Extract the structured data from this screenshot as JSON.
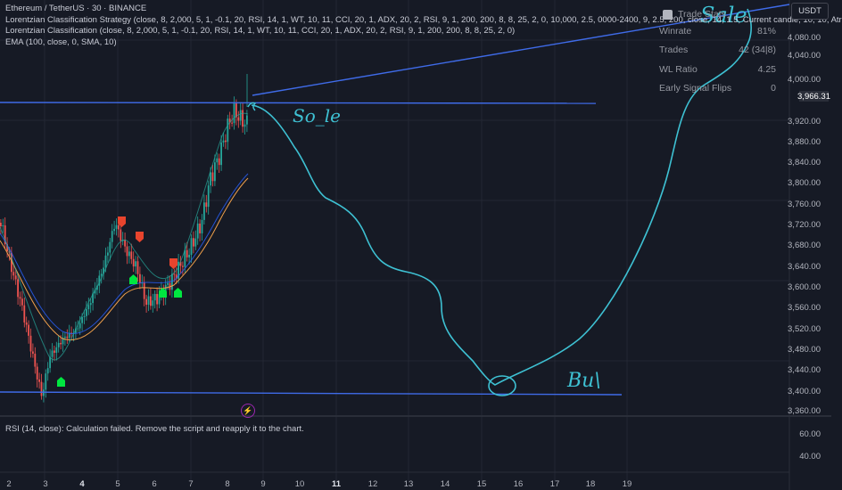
{
  "legend": {
    "line1": "Ethereum / TetherUS · 30 · BINANCE",
    "line2": "Lorentzian Classification Strategy (close, 8, 2,000, 5, 1, -0.1, 20, RSI, 14, 1, WT, 10, 11, CCI, 20, 1, ADX, 20, 2, RSI, 9, 1, 200, 200, 8, 8, 25, 2, 0, 10,000, 2.5, 0000-2400, 9, 2.5, 200, close, 14, 1.5, Current candle, 10, 10, Atr",
    "line3": "Lorentzian Classification (close, 8, 2,000, 5, 1, -0.1, 20, RSI, 14, 1, WT, 10, 11, CCI, 20, 1, ADX, 20, 2, RSI, 9, 1, 200, 200, 8, 8, 25, 2, 0)",
    "line4": "EMA (100, close, 0, SMA, 10)"
  },
  "stats": {
    "header": "Trade Stats",
    "rows": [
      {
        "label": "Winrate",
        "value": "81%"
      },
      {
        "label": "Trades",
        "value": "42 (34|8)"
      },
      {
        "label": "WL Ratio",
        "value": "4.25"
      },
      {
        "label": "Early Signal Flips",
        "value": "0"
      }
    ]
  },
  "currency": "USDT",
  "price_axis": [
    "4,080.00",
    "4,040.00",
    "4,000.00",
    "3,920.00",
    "3,880.00",
    "3,840.00",
    "3,800.00",
    "3,760.00",
    "3,720.00",
    "3,680.00",
    "3,640.00",
    "3,600.00",
    "3,560.00",
    "3,520.00",
    "3,480.00",
    "3,440.00",
    "3,400.00",
    "3,360.00"
  ],
  "current_price": "3,966.31",
  "time_axis": [
    "2",
    "3",
    "4",
    "5",
    "6",
    "7",
    "8",
    "9",
    "10",
    "11",
    "12",
    "13",
    "14",
    "15",
    "16",
    "17",
    "18",
    "19"
  ],
  "annotations": {
    "sell_text": "So_le",
    "buy_text": "Bu\\",
    "sell_top": "Sale"
  },
  "rsi": {
    "text": "RSI (14, close): Calculation failed. Remove the script and reapply it to the chart.",
    "axis": [
      "60.00",
      "40.00"
    ]
  },
  "colors": {
    "background": "#161a25",
    "trendline": "#3f6be8",
    "drawing": "#3ec1d3",
    "up": "#26a69a",
    "down": "#ef5350",
    "buy_marker": "#00e640",
    "sell_marker": "#e8442d"
  }
}
